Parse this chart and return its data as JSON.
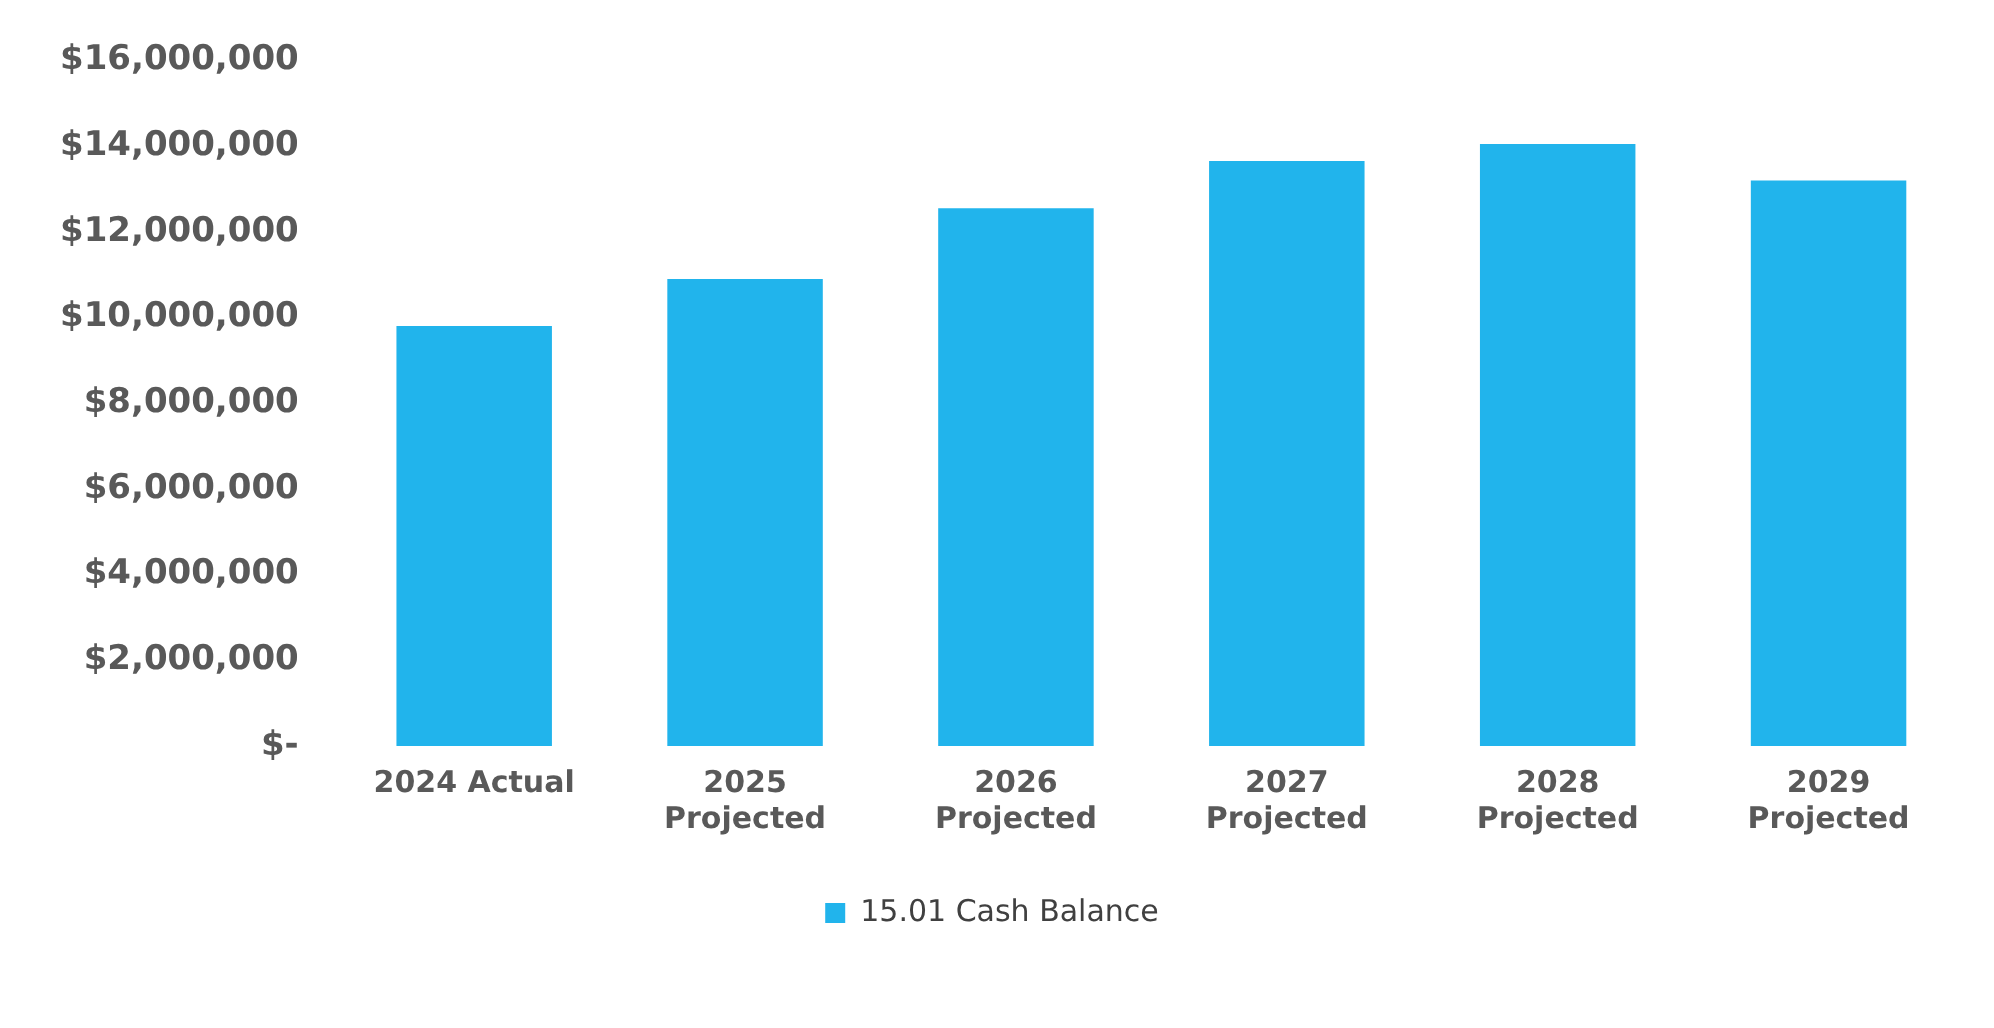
{
  "chart_data": {
    "type": "bar",
    "categories": [
      "2024 Actual",
      "2025 Projected",
      "2026 Projected",
      "2027 Projected",
      "2028 Projected",
      "2029 Projected"
    ],
    "series": [
      {
        "name": "15.01 Cash Balance",
        "color": "#21b4ec",
        "values": [
          9800000,
          10900000,
          12550000,
          13650000,
          14050000,
          13200000
        ]
      }
    ],
    "ylim": [
      0,
      16000000
    ],
    "yticks": [
      {
        "value": 0,
        "label": "$-"
      },
      {
        "value": 2000000,
        "label": "$2,000,000"
      },
      {
        "value": 4000000,
        "label": "$4,000,000"
      },
      {
        "value": 6000000,
        "label": "$6,000,000"
      },
      {
        "value": 8000000,
        "label": "$8,000,000"
      },
      {
        "value": 10000000,
        "label": "$10,000,000"
      },
      {
        "value": 12000000,
        "label": "$12,000,000"
      },
      {
        "value": 14000000,
        "label": "$14,000,000"
      },
      {
        "value": 16000000,
        "label": "$16,000,000"
      }
    ],
    "grid": false,
    "legend": "bottom"
  }
}
